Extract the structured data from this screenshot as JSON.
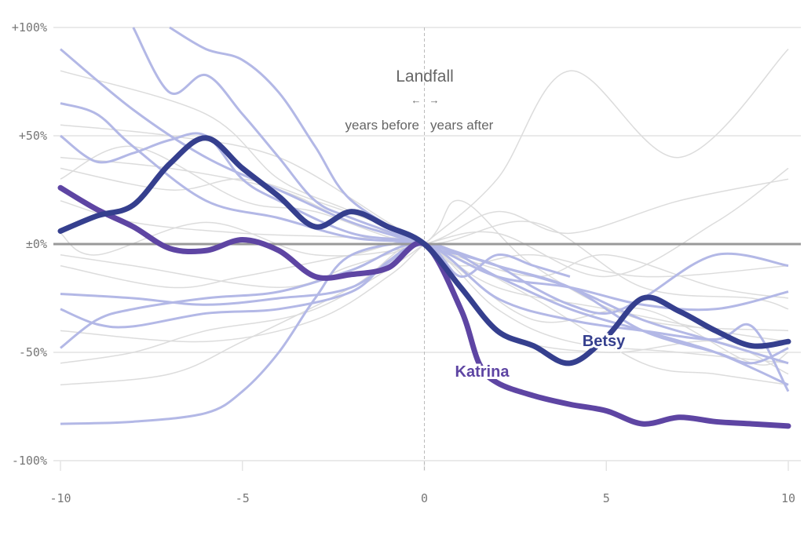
{
  "chart_data": {
    "type": "line",
    "title": "",
    "xlabel": "",
    "ylabel": "",
    "xlim": [
      -10,
      10
    ],
    "ylim": [
      -100,
      100
    ],
    "x_ticks": [
      -10,
      -5,
      0,
      5,
      10
    ],
    "x_tick_labels": [
      "-10",
      "-5",
      "0",
      "5",
      "10"
    ],
    "y_ticks": [
      100,
      50,
      0,
      -50,
      -100
    ],
    "y_tick_labels": [
      "+100%",
      "+50%",
      "±0%",
      "-50%",
      "-100%"
    ],
    "grid": true,
    "annotation": {
      "title": "Landfall",
      "left_arrow": "←",
      "right_arrow": "→",
      "before": "years before",
      "after": "years after"
    },
    "colors": {
      "katrina": "#5e45a3",
      "betsy": "#353f8e",
      "highlight": "#b3b8e6",
      "background": "#dcdcdc",
      "zero": "#999999",
      "grid": "#e4e4e4"
    },
    "highlighted": [
      {
        "name": "Katrina",
        "x": [
          -10,
          -9,
          -8,
          -7,
          -6,
          -5,
          -4,
          -3,
          -2,
          -1,
          0,
          1,
          1.5,
          2,
          3,
          4,
          5,
          6,
          7,
          8,
          9,
          10
        ],
        "y": [
          26,
          16,
          8,
          -2,
          -3,
          2,
          -3,
          -15,
          -14,
          -11,
          0,
          -30,
          -55,
          -64,
          -70,
          -74,
          -77,
          -83,
          -80,
          -82,
          -83,
          -84
        ]
      },
      {
        "name": "Betsy",
        "x": [
          -10,
          -9,
          -8,
          -7,
          -6,
          -5,
          -4,
          -3,
          -2,
          -1,
          0,
          1,
          2,
          3,
          4,
          5,
          6,
          7,
          8,
          9,
          10
        ],
        "y": [
          6,
          13,
          18,
          37,
          49,
          35,
          22,
          8,
          15,
          8,
          0,
          -20,
          -40,
          -47,
          -55,
          -43,
          -25,
          -31,
          -40,
          -47,
          -45
        ]
      }
    ],
    "secondary_series": [
      {
        "x": [
          -10,
          -8,
          -6,
          -4,
          -2,
          0
        ],
        "y": [
          90,
          62,
          40,
          25,
          10,
          0
        ]
      },
      {
        "x": [
          -10,
          -9,
          -8,
          -6,
          -4,
          -2,
          0,
          2,
          4,
          6,
          8,
          10
        ],
        "y": [
          65,
          60,
          45,
          20,
          12,
          3,
          0,
          -10,
          -20,
          -35,
          -45,
          -55
        ]
      },
      {
        "x": [
          -10,
          -9,
          -8,
          -7,
          -6,
          -5,
          -4,
          -2,
          0,
          2,
          4,
          6,
          8,
          10
        ],
        "y": [
          50,
          38,
          42,
          48,
          50,
          30,
          20,
          5,
          0,
          -15,
          -20,
          -28,
          -30,
          -22
        ]
      },
      {
        "x": [
          -7,
          -6,
          -5,
          -4,
          -3,
          -2,
          0,
          1,
          2,
          3,
          4,
          5,
          6,
          8,
          10
        ],
        "y": [
          100,
          90,
          85,
          70,
          45,
          20,
          0,
          -5,
          -10,
          -20,
          -28,
          -32,
          -25,
          -5,
          -10
        ]
      },
      {
        "x": [
          -10,
          -8,
          -6,
          -4,
          -2,
          0,
          2,
          4,
          6,
          8,
          10
        ],
        "y": [
          -23,
          -25,
          -28,
          -25,
          -20,
          0,
          -15,
          -30,
          -40,
          -50,
          -65
        ]
      },
      {
        "x": [
          -10,
          -9,
          -8,
          -6,
          -4,
          -2,
          0,
          2,
          4,
          6,
          8,
          9,
          10
        ],
        "y": [
          -48,
          -35,
          -30,
          -25,
          -22,
          -12,
          0,
          -25,
          -35,
          -40,
          -44,
          -38,
          -68
        ]
      },
      {
        "x": [
          -10,
          -8,
          -6,
          -5,
          -4,
          -3,
          -2,
          0,
          1,
          2,
          3,
          4
        ],
        "y": [
          -83,
          -82,
          -78,
          -68,
          -50,
          -25,
          -5,
          0,
          -15,
          -5,
          -10,
          -15
        ]
      },
      {
        "x": [
          -10,
          -9,
          -8,
          -6,
          -4,
          -2,
          -1,
          0,
          2,
          4,
          6,
          8,
          9,
          10
        ],
        "y": [
          -30,
          -37,
          -38,
          -32,
          -30,
          -22,
          -8,
          0,
          -10,
          -20,
          -40,
          -50,
          -55,
          -48
        ]
      },
      {
        "x": [
          -8,
          -7,
          -6,
          -5,
          -4,
          -3,
          -2,
          0
        ],
        "y": [
          100,
          70,
          78,
          60,
          40,
          20,
          12,
          0
        ]
      }
    ],
    "background_series": [
      {
        "x": [
          -10,
          -7,
          -4,
          -2,
          0,
          2,
          5,
          8,
          10
        ],
        "y": [
          40,
          35,
          25,
          10,
          0,
          -20,
          -30,
          -40,
          -45
        ]
      },
      {
        "x": [
          -10,
          -8,
          -5,
          -3,
          0,
          3,
          6,
          9,
          10
        ],
        "y": [
          30,
          45,
          20,
          15,
          0,
          10,
          -20,
          -25,
          -30
        ]
      },
      {
        "x": [
          -10,
          -7,
          -5,
          -2,
          0,
          2,
          4,
          7,
          10
        ],
        "y": [
          -10,
          -20,
          -15,
          -5,
          0,
          -30,
          -45,
          -50,
          -55
        ]
      },
      {
        "x": [
          -10,
          -8,
          -6,
          -3,
          0,
          1,
          3,
          6,
          10
        ],
        "y": [
          -55,
          -50,
          -40,
          -30,
          0,
          20,
          -10,
          -35,
          -40
        ]
      },
      {
        "x": [
          -10,
          -7,
          -4,
          -1,
          0,
          3,
          5,
          8,
          10
        ],
        "y": [
          55,
          50,
          40,
          10,
          0,
          -15,
          -5,
          -20,
          -25
        ]
      },
      {
        "x": [
          -10,
          -6,
          -3,
          -1,
          0,
          2,
          4,
          7,
          10
        ],
        "y": [
          -40,
          -45,
          -35,
          -15,
          0,
          30,
          80,
          40,
          90
        ]
      },
      {
        "x": [
          -10,
          -8,
          -5,
          -2,
          0,
          3,
          6,
          8,
          10
        ],
        "y": [
          20,
          10,
          5,
          3,
          0,
          -25,
          -55,
          -60,
          -65
        ]
      },
      {
        "x": [
          -10,
          -7,
          -5,
          -2,
          0,
          2,
          5,
          8,
          10
        ],
        "y": [
          -65,
          -60,
          -45,
          -20,
          0,
          -40,
          -50,
          -45,
          -60
        ]
      },
      {
        "x": [
          -10,
          -9,
          -6,
          -3,
          0,
          2,
          4,
          7,
          10
        ],
        "y": [
          5,
          -5,
          10,
          -5,
          0,
          15,
          5,
          20,
          30
        ]
      },
      {
        "x": [
          -10,
          -6,
          -4,
          -2,
          0,
          1,
          3,
          6,
          10
        ],
        "y": [
          80,
          60,
          30,
          15,
          0,
          -10,
          -5,
          -15,
          -10
        ]
      },
      {
        "x": [
          -10,
          -8,
          -4,
          -2,
          0,
          2,
          5,
          8,
          10
        ],
        "y": [
          -5,
          -10,
          -20,
          -10,
          0,
          5,
          -15,
          10,
          35
        ]
      },
      {
        "x": [
          -10,
          -7,
          -5,
          -3,
          0,
          3,
          6,
          9,
          10
        ],
        "y": [
          35,
          25,
          30,
          20,
          0,
          -35,
          -30,
          -55,
          -50
        ]
      }
    ],
    "labels": {
      "katrina": "Katrina",
      "betsy": "Betsy"
    }
  }
}
